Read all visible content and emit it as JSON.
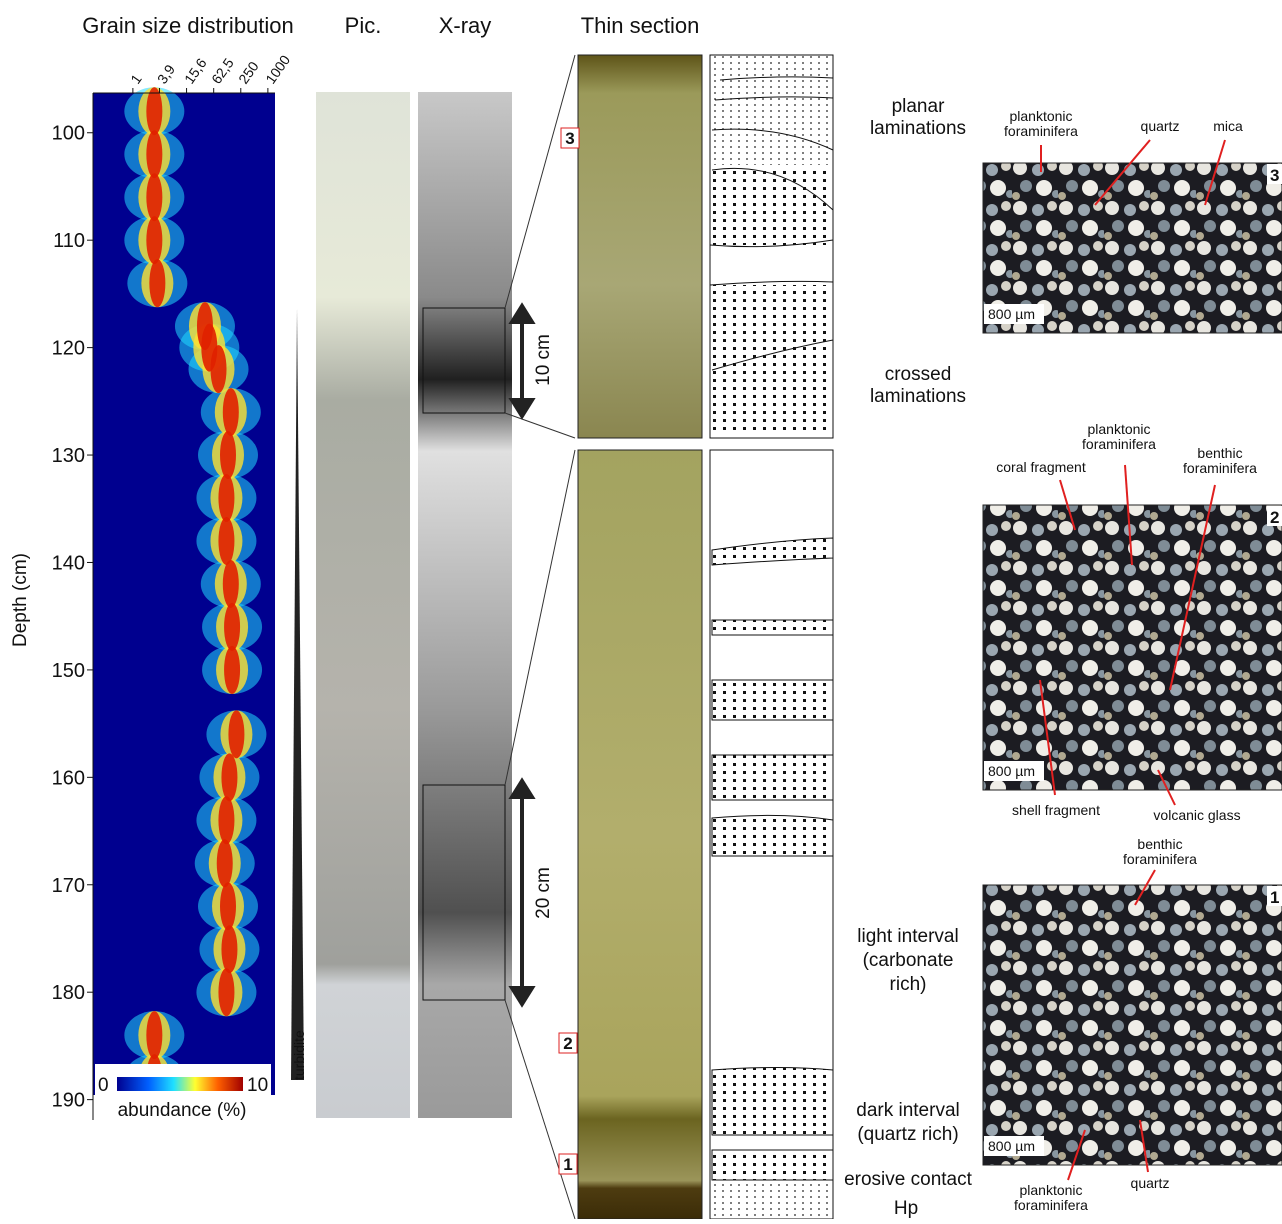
{
  "chart_data": {
    "type": "heatmap",
    "title": "Grain size distribution",
    "ylabel": "Depth (cm)",
    "log_x": true,
    "xlim": [
      0.13,
      1440
    ],
    "xticks": [
      1,
      {
        "value": 3.9,
        "label": "3,9"
      },
      {
        "value": 15.6,
        "label": "15,6"
      },
      {
        "value": 62.5,
        "label": "62,5"
      },
      250,
      1000
    ],
    "ylim": [
      96.3,
      190.5
    ],
    "yticks": [
      100,
      110,
      120,
      130,
      140,
      150,
      160,
      170,
      180,
      190
    ],
    "depths": [
      98,
      102,
      106,
      110,
      114,
      118,
      120,
      122,
      126,
      130,
      134,
      138,
      142,
      146,
      150,
      156,
      160,
      164,
      168,
      172,
      176,
      180,
      184,
      188
    ],
    "values": [
      3,
      3,
      3,
      3,
      3.5,
      40,
      50,
      80,
      150,
      130,
      120,
      120,
      150,
      160,
      160,
      200,
      140,
      120,
      110,
      130,
      140,
      120,
      3,
      3
    ],
    "colorbar": {
      "label": "abundance (%)",
      "lim": [
        0,
        10
      ]
    }
  },
  "headers": {
    "pic": "Pic.",
    "xray": "X-ray",
    "thin": "Thin section"
  },
  "turbidite": "turbidite",
  "scales": {
    "upper": "10 cm",
    "lower": "20 cm"
  },
  "markers": [
    "3",
    "2",
    "1"
  ],
  "descriptions": {
    "planar": [
      "planar",
      "laminations"
    ],
    "crossed": [
      "crossed",
      "laminations"
    ],
    "light": [
      "light interval",
      "(carbonate",
      "rich)"
    ],
    "dark": [
      "dark interval",
      "(quartz rich)"
    ],
    "erosive": "erosive contact",
    "hp": "Hp"
  },
  "photos": {
    "p3": {
      "number": "3",
      "scale": "800 µm",
      "labels": [
        [
          "planktonic",
          "foraminifera"
        ],
        [
          "quartz"
        ],
        [
          "mica"
        ]
      ]
    },
    "p2": {
      "number": "2",
      "scale": "800 µm",
      "labels": [
        [
          "coral fragment"
        ],
        [
          "planktonic",
          "foraminifera"
        ],
        [
          "benthic",
          "foraminifera"
        ],
        [
          "shell fragment"
        ],
        [
          "volcanic glass"
        ]
      ]
    },
    "p1": {
      "number": "1",
      "scale": "800 µm",
      "labels": [
        [
          "benthic",
          "foraminifera"
        ],
        [
          "planktonic",
          "foraminifera"
        ],
        [
          "quartz"
        ]
      ]
    }
  }
}
